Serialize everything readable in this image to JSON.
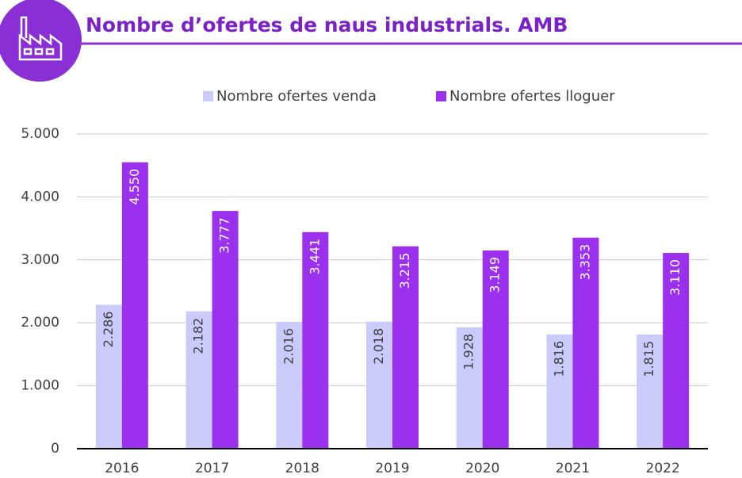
{
  "chart_data": {
    "type": "bar",
    "title": "Nombre d’ofertes de naus industrials. AMB",
    "categories": [
      "2016",
      "2017",
      "2018",
      "2019",
      "2020",
      "2021",
      "2022"
    ],
    "series": [
      {
        "name": "Nombre ofertes venda",
        "color": "#cacafb",
        "values": [
          2286,
          2182,
          2016,
          2018,
          1928,
          1816,
          1815
        ],
        "value_labels": [
          "2.286",
          "2.182",
          "2.016",
          "2.018",
          "1.928",
          "1.816",
          "1.815"
        ]
      },
      {
        "name": "Nombre ofertes lloguer",
        "color": "#9b30ee",
        "values": [
          4550,
          3777,
          3441,
          3215,
          3149,
          3353,
          3110
        ],
        "value_labels": [
          "4.550",
          "3.777",
          "3.441",
          "3.215",
          "3.149",
          "3.353",
          "3.110"
        ]
      }
    ],
    "ylim": [
      0,
      5000
    ],
    "yticks": [
      0,
      {
        "value": 1000,
        "label": "1.000"
      },
      {
        "value": 2000,
        "label": "2.000"
      },
      {
        "value": 3000,
        "label": "3.000"
      },
      {
        "value": 4000,
        "label": "4.000"
      },
      {
        "value": 5000,
        "label": "5.000"
      }
    ],
    "grid": true,
    "legend": "top"
  }
}
